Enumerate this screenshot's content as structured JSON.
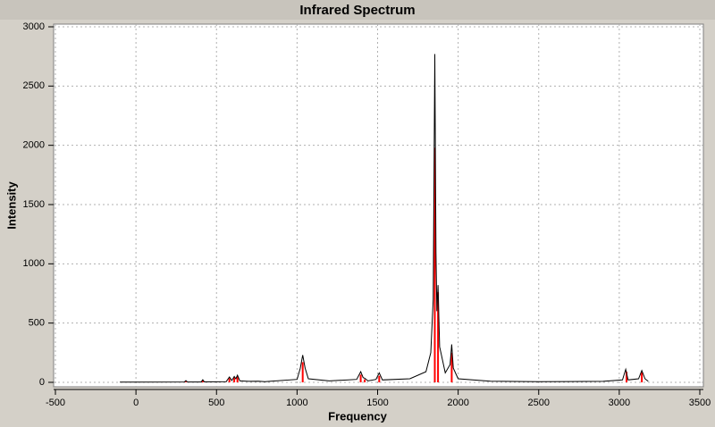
{
  "chart_data": {
    "type": "line",
    "title": "Infrared Spectrum",
    "xlabel": "Frequency",
    "ylabel": "Intensity",
    "xlim": [
      -500,
      3500
    ],
    "ylim": [
      0,
      3000
    ],
    "xticks": [
      -500,
      0,
      500,
      1000,
      1500,
      2000,
      2500,
      3000,
      3500
    ],
    "yticks": [
      0,
      500,
      1000,
      1500,
      2000,
      2500,
      3000
    ],
    "grid": true,
    "series": [
      {
        "color": "#000000",
        "x": [
          -100,
          0,
          300,
          310,
          320,
          405,
          415,
          425,
          560,
          580,
          595,
          610,
          620,
          630,
          645,
          700,
          760,
          800,
          1000,
          1020,
          1035,
          1050,
          1070,
          1200,
          1370,
          1395,
          1410,
          1420,
          1440,
          1490,
          1510,
          1530,
          1700,
          1800,
          1830,
          1845,
          1855,
          1862,
          1868,
          1875,
          1885,
          1920,
          1950,
          1960,
          1970,
          2000,
          2200,
          2500,
          2900,
          3020,
          3040,
          3055,
          3120,
          3140,
          3160,
          3180
        ],
        "values": [
          2,
          2,
          3,
          15,
          3,
          3,
          22,
          4,
          6,
          45,
          15,
          50,
          30,
          60,
          12,
          8,
          10,
          6,
          25,
          120,
          230,
          120,
          30,
          12,
          25,
          90,
          40,
          35,
          12,
          25,
          80,
          20,
          30,
          90,
          250,
          700,
          2770,
          1100,
          600,
          820,
          300,
          80,
          150,
          320,
          120,
          30,
          10,
          5,
          8,
          20,
          110,
          20,
          30,
          100,
          30,
          8
        ]
      },
      {
        "color": "#ff0000",
        "type": "stick",
        "x": [
          310,
          415,
          580,
          610,
          630,
          1035,
          1395,
          1420,
          1510,
          1855,
          1875,
          1960,
          3045,
          3140
        ],
        "values": [
          12,
          18,
          35,
          40,
          50,
          170,
          65,
          25,
          55,
          1980,
          760,
          250,
          90,
          85
        ]
      }
    ]
  }
}
